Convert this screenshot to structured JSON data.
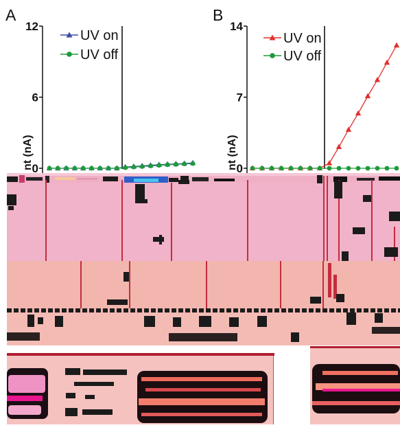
{
  "chart_data": [
    {
      "panel": "A",
      "type": "line",
      "ylabel": "nt (nA)",
      "ylim": [
        0,
        12
      ],
      "yticks": [
        0,
        6,
        12
      ],
      "grid": false,
      "legend": "top-left",
      "series": [
        {
          "name": "UV on",
          "color": "#3a4aa6",
          "marker": "triangle",
          "values": [
            0,
            0,
            0,
            0,
            0,
            0,
            0,
            0,
            0,
            0.1,
            0.15,
            0.2,
            0.25,
            0.3,
            0.33,
            0.37,
            0.4,
            0.45
          ]
        },
        {
          "name": "UV off",
          "color": "#1e9a3c",
          "marker": "circle",
          "values": [
            0,
            0,
            0,
            0,
            0,
            0,
            0,
            0,
            0,
            0.05,
            0.1,
            0.15,
            0.2,
            0.25,
            0.3,
            0.33,
            0.37,
            0.4
          ]
        }
      ]
    },
    {
      "panel": "B",
      "type": "line",
      "ylabel": "nt (nA)",
      "ylim": [
        0,
        14
      ],
      "yticks": [
        0,
        7,
        14
      ],
      "grid": false,
      "legend": "top-left",
      "series": [
        {
          "name": "UV on",
          "color": "#e2302d",
          "marker": "triangle",
          "values": [
            0,
            0,
            0,
            0,
            0,
            0,
            0,
            0,
            0.5,
            2.1,
            3.8,
            5.4,
            7.1,
            8.7,
            10.4,
            12.1
          ]
        },
        {
          "name": "UV off",
          "color": "#1e9a3c",
          "marker": "circle",
          "values": [
            0,
            0,
            0,
            0,
            0,
            0,
            0,
            0,
            0,
            0,
            0,
            0,
            0,
            0,
            0,
            0
          ]
        }
      ]
    }
  ]
}
